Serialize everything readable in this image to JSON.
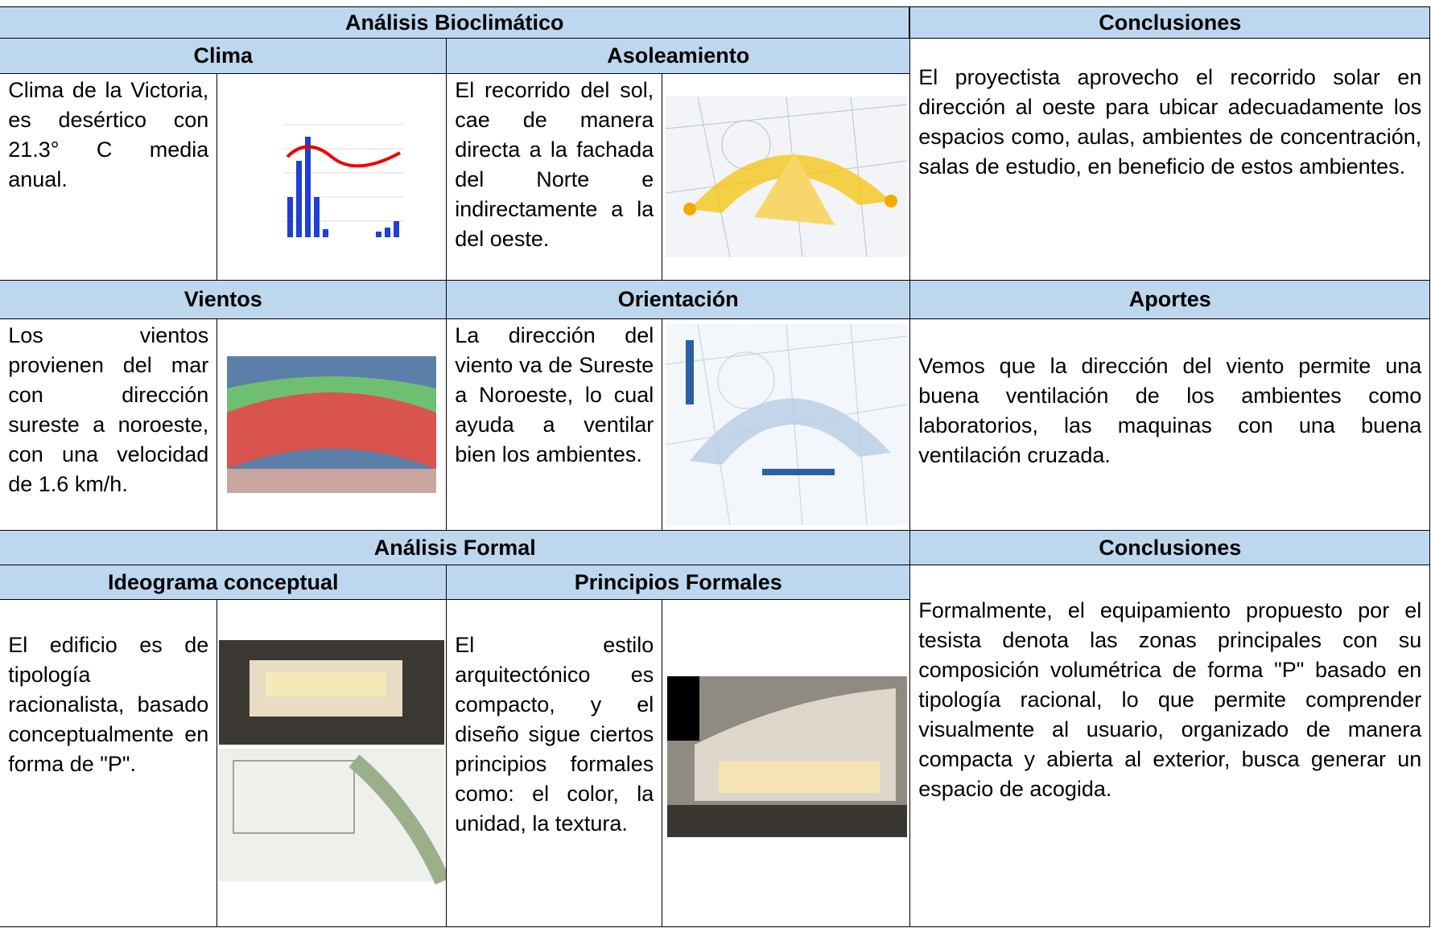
{
  "section1": {
    "title": "Análisis Bioclimático",
    "conclusions_title": "Conclusiones",
    "clima": {
      "title": "Clima",
      "text": "Clima de la Victoria, es desértico con 21.3° C media anual."
    },
    "asoleamiento": {
      "title": "Asoleamiento",
      "text": "El recorrido del sol, cae de manera directa a la fachada del Norte e indirectamente a la del oeste."
    },
    "conclusions": "El proyectista aprovecho el recorrido solar en dirección al oeste para ubicar adecuadamente los espacios como, aulas, ambientes de concentración, salas de estudio, en beneficio de estos ambientes."
  },
  "section2": {
    "vientos": {
      "title": "Vientos",
      "text": "Los vientos provienen del mar con dirección sureste a noroeste, con una velocidad de 1.6 km/h."
    },
    "orientacion": {
      "title": "Orientación",
      "text": "La dirección del viento va de Sureste a Noroeste, lo cual ayuda a ventilar bien los ambientes."
    },
    "aportes": {
      "title": "Aportes",
      "text": "Vemos que la dirección del viento permite una buena ventilación de los ambientes como laboratorios, las maquinas con una buena ventilación cruzada."
    }
  },
  "section3": {
    "title": "Análisis Formal",
    "conclusions_title": "Conclusiones",
    "ideograma": {
      "title": "Ideograma conceptual",
      "text": "El edificio es de tipología racionalista, basado conceptualmente en forma de \"P\"."
    },
    "principios": {
      "title": "Principios Formales",
      "text": "El estilo arquitectónico es compacto, y el diseño sigue ciertos principios formales como: el color, la unidad, la textura."
    },
    "conclusions": "Formalmente, el equipamiento propuesto por el tesista denota las zonas principales con su composición volumétrica de forma \"P\" basado en tipología racional, lo que permite comprender visualmente al usuario, organizado de manera compacta y abierta al exterior, busca generar un espacio de acogida."
  }
}
